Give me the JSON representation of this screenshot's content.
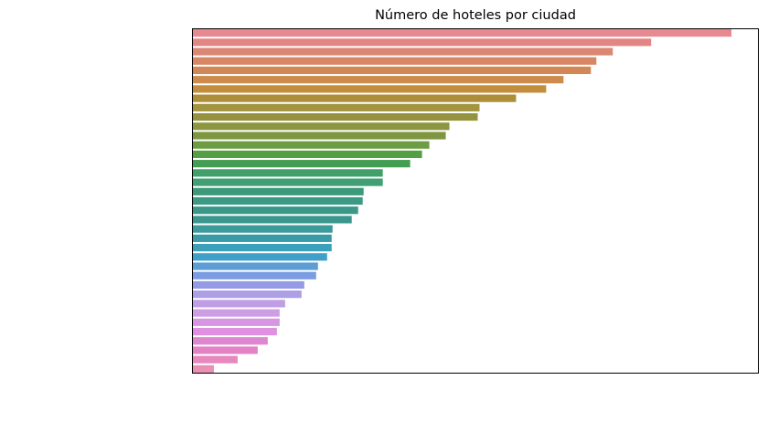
{
  "chart_data": {
    "type": "barh",
    "title": "Número de hoteles por ciudad",
    "categories": [
      null,
      null,
      null,
      null,
      null,
      null,
      null,
      null,
      null,
      null,
      null,
      null,
      null,
      null,
      null,
      null,
      null,
      null,
      null,
      null,
      null,
      null,
      null,
      null,
      null,
      null,
      null,
      null,
      null,
      null,
      null,
      null,
      null,
      null,
      null,
      null,
      null
    ],
    "values": [
      590,
      502,
      460,
      442,
      436,
      406,
      387,
      354,
      314,
      312,
      281,
      277,
      259,
      251,
      238,
      208,
      208,
      187,
      186,
      181,
      174,
      153,
      152,
      152,
      147,
      137,
      135,
      122,
      119,
      101,
      95,
      95,
      92,
      82,
      71,
      49,
      23
    ],
    "colors": [
      "hsl(355,65%,72%)",
      "hsl(2,62%,70%)",
      "hsl(10,60%,66%)",
      "hsl(18,60%,62%)",
      "hsl(24,58%,58%)",
      "hsl(30,56%,55%)",
      "hsl(36,54%,50%)",
      "hsl(44,50%,45%)",
      "hsl(52,45%,44%)",
      "hsl(58,40%,42%)",
      "hsl(66,40%,42%)",
      "hsl(76,40%,42%)",
      "hsl(92,40%,44%)",
      "hsl(108,42%,44%)",
      "hsl(130,40%,44%)",
      "hsl(146,42%,44%)",
      "hsl(154,42%,44%)",
      "hsl(160,44%,42%)",
      "hsl(166,44%,42%)",
      "hsl(170,44%,41%)",
      "hsl(174,44%,41%)",
      "hsl(180,44%,42%)",
      "hsl(186,48%,44%)",
      "hsl(192,52%,48%)",
      "hsl(198,56%,52%)",
      "hsl(208,60%,60%)",
      "hsl(220,64%,68%)",
      "hsl(236,60%,74%)",
      "hsl(252,58%,76%)",
      "hsl(268,58%,76%)",
      "hsl(280,58%,76%)",
      "hsl(290,58%,74%)",
      "hsl(300,56%,72%)",
      "hsl(310,58%,70%)",
      "hsl(318,62%,70%)",
      "hsl(326,66%,72%)",
      "hsl(336,68%,74%)"
    ],
    "xlim": [
      0,
      620
    ]
  }
}
